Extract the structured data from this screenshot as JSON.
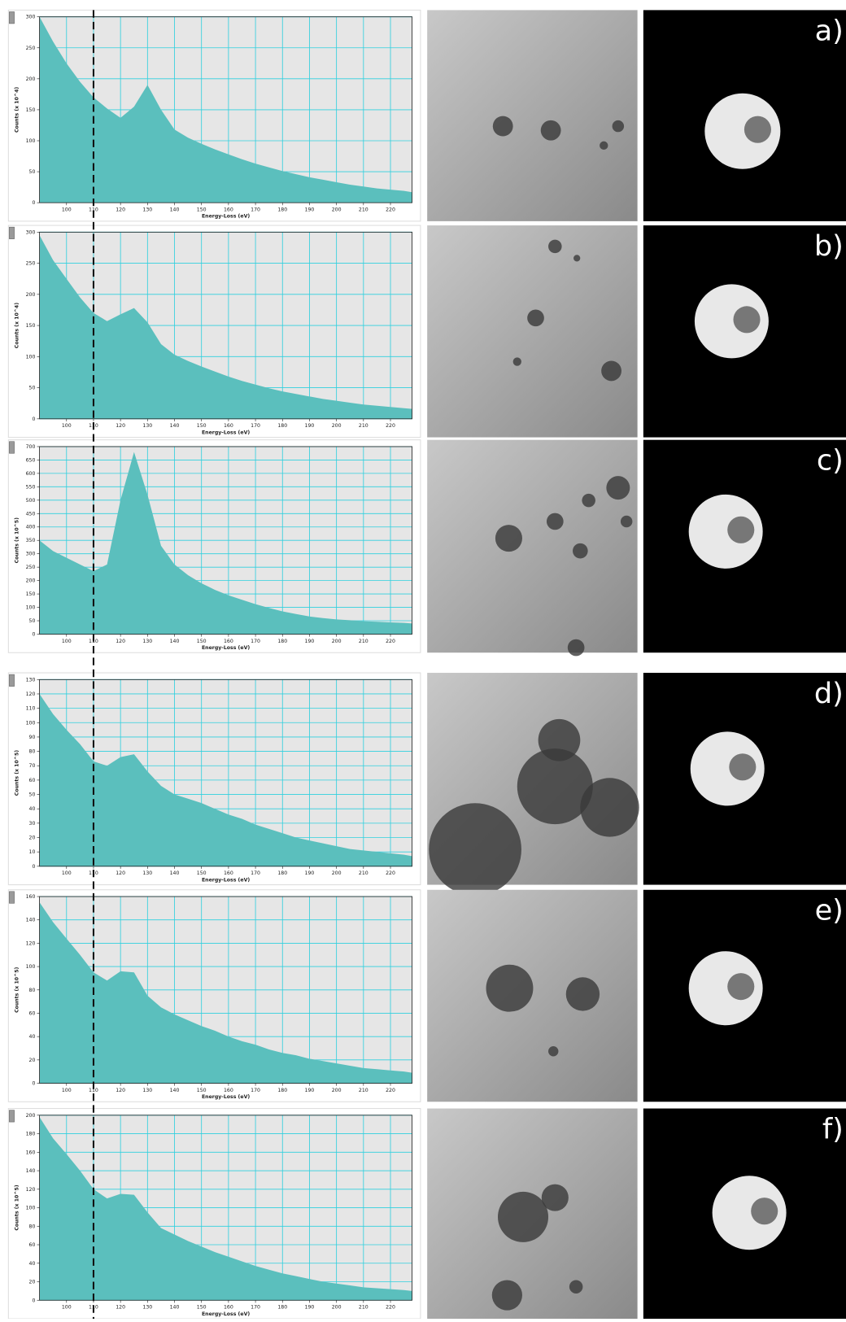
{
  "chart_data": [
    {
      "type": "area",
      "panel_label": "a)",
      "x_label": "Energy-Loss (eV)",
      "y_label": "Counts (x 10^4)",
      "color": "#5bbfbd",
      "grid": true,
      "xlim": [
        90,
        228
      ],
      "xticks": [
        100,
        110,
        120,
        130,
        140,
        150,
        160,
        170,
        180,
        190,
        200,
        210,
        220
      ],
      "ylim": [
        0,
        300
      ],
      "yticks": [
        0,
        50,
        100,
        150,
        200,
        250,
        300
      ],
      "x": [
        90,
        95,
        100,
        105,
        110,
        115,
        120,
        125,
        130,
        135,
        140,
        145,
        150,
        155,
        160,
        165,
        170,
        175,
        180,
        185,
        190,
        195,
        200,
        205,
        210,
        215,
        220,
        225,
        228
      ],
      "values": [
        300,
        260,
        225,
        195,
        170,
        152,
        137,
        155,
        190,
        150,
        118,
        105,
        95,
        86,
        78,
        70,
        63,
        57,
        51,
        46,
        41,
        37,
        33,
        29,
        26,
        23,
        21,
        19,
        17
      ]
    },
    {
      "type": "area",
      "panel_label": "b)",
      "x_label": "Energy-Loss (eV)",
      "y_label": "Counts (x 10^4)",
      "color": "#5bbfbd",
      "grid": true,
      "xlim": [
        90,
        228
      ],
      "xticks": [
        100,
        110,
        120,
        130,
        140,
        150,
        160,
        170,
        180,
        190,
        200,
        210,
        220
      ],
      "ylim": [
        0,
        300
      ],
      "yticks": [
        0,
        50,
        100,
        150,
        200,
        250,
        300
      ],
      "x": [
        90,
        95,
        100,
        105,
        110,
        115,
        120,
        125,
        130,
        135,
        140,
        145,
        150,
        155,
        160,
        165,
        170,
        175,
        180,
        185,
        190,
        195,
        200,
        205,
        210,
        215,
        220,
        225,
        228
      ],
      "values": [
        295,
        255,
        225,
        195,
        170,
        157,
        168,
        178,
        155,
        120,
        103,
        93,
        84,
        76,
        68,
        61,
        55,
        49,
        44,
        40,
        36,
        32,
        29,
        26,
        23,
        21,
        19,
        17,
        16
      ]
    },
    {
      "type": "area",
      "panel_label": "c)",
      "x_label": "Energy-Loss (eV)",
      "y_label": "Counts (x 10^5)",
      "color": "#5bbfbd",
      "grid": true,
      "xlim": [
        90,
        228
      ],
      "xticks": [
        100,
        110,
        120,
        130,
        140,
        150,
        160,
        170,
        180,
        190,
        200,
        210,
        220
      ],
      "ylim": [
        0,
        700
      ],
      "yticks": [
        0,
        50,
        100,
        150,
        200,
        250,
        300,
        350,
        400,
        450,
        500,
        550,
        600,
        650,
        700
      ],
      "x": [
        90,
        95,
        100,
        105,
        110,
        115,
        120,
        125,
        130,
        135,
        140,
        145,
        150,
        155,
        160,
        165,
        170,
        175,
        180,
        185,
        190,
        195,
        200,
        205,
        210,
        215,
        220,
        225,
        228
      ],
      "values": [
        350,
        310,
        285,
        260,
        235,
        260,
        500,
        680,
        520,
        330,
        260,
        220,
        190,
        165,
        145,
        128,
        112,
        98,
        85,
        75,
        66,
        60,
        55,
        52,
        48,
        46,
        44,
        42,
        40
      ]
    },
    {
      "type": "area",
      "panel_label": "d)",
      "x_label": "Energy-Loss (eV)",
      "y_label": "Counts (x 10^5)",
      "color": "#5bbfbd",
      "grid": true,
      "xlim": [
        90,
        228
      ],
      "xticks": [
        100,
        110,
        120,
        130,
        140,
        150,
        160,
        170,
        180,
        190,
        200,
        210,
        220
      ],
      "ylim": [
        0,
        130
      ],
      "yticks": [
        0,
        10,
        20,
        30,
        40,
        50,
        60,
        70,
        80,
        90,
        100,
        110,
        120,
        130
      ],
      "x": [
        90,
        95,
        100,
        105,
        110,
        115,
        120,
        125,
        130,
        135,
        140,
        145,
        150,
        155,
        160,
        165,
        170,
        175,
        180,
        185,
        190,
        195,
        200,
        205,
        210,
        215,
        220,
        225,
        228
      ],
      "values": [
        120,
        106,
        95,
        85,
        73,
        70,
        76,
        78,
        66,
        56,
        50,
        47,
        44,
        40,
        36,
        33,
        29,
        26,
        23,
        20,
        18,
        16,
        14,
        12,
        11,
        10,
        9,
        8,
        7
      ]
    },
    {
      "type": "area",
      "panel_label": "e)",
      "x_label": "Energy-Loss (eV)",
      "y_label": "Counts (x 10^5)",
      "color": "#5bbfbd",
      "grid": true,
      "xlim": [
        90,
        228
      ],
      "xticks": [
        100,
        110,
        120,
        130,
        140,
        150,
        160,
        170,
        180,
        190,
        200,
        210,
        220
      ],
      "ylim": [
        0,
        160
      ],
      "yticks": [
        0,
        20,
        40,
        60,
        80,
        100,
        120,
        140,
        160
      ],
      "x": [
        90,
        95,
        100,
        105,
        110,
        115,
        120,
        125,
        130,
        135,
        140,
        145,
        150,
        155,
        160,
        165,
        170,
        175,
        180,
        185,
        190,
        195,
        200,
        205,
        210,
        215,
        220,
        225,
        228
      ],
      "values": [
        155,
        138,
        124,
        110,
        95,
        88,
        96,
        95,
        75,
        65,
        59,
        54,
        49,
        45,
        40,
        36,
        33,
        29,
        26,
        24,
        21,
        19,
        17,
        15,
        13,
        12,
        11,
        10,
        9
      ]
    },
    {
      "type": "area",
      "panel_label": "f)",
      "x_label": "Energy-Loss (eV)",
      "y_label": "Counts (x 10^5)",
      "color": "#5bbfbd",
      "grid": true,
      "xlim": [
        90,
        228
      ],
      "xticks": [
        100,
        110,
        120,
        130,
        140,
        150,
        160,
        170,
        180,
        190,
        200,
        210,
        220
      ],
      "ylim": [
        0,
        200
      ],
      "yticks": [
        0,
        20,
        40,
        60,
        80,
        100,
        120,
        140,
        160,
        180,
        200
      ],
      "x": [
        90,
        95,
        100,
        105,
        110,
        115,
        120,
        125,
        130,
        135,
        140,
        145,
        150,
        155,
        160,
        165,
        170,
        175,
        180,
        185,
        190,
        195,
        200,
        205,
        210,
        215,
        220,
        225,
        228
      ],
      "values": [
        198,
        175,
        158,
        140,
        120,
        110,
        115,
        114,
        95,
        78,
        71,
        64,
        58,
        52,
        47,
        42,
        37,
        33,
        29,
        26,
        23,
        20,
        18,
        16,
        14,
        13,
        12,
        11,
        10
      ]
    }
  ],
  "reference_line": {
    "x": 110
  }
}
